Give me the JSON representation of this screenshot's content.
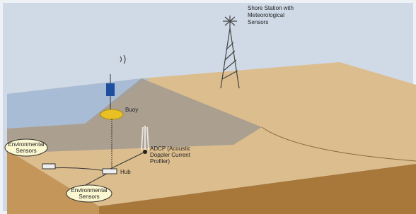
{
  "shore_station": {
    "label_lines": [
      "Shore Station with",
      "Meteorological",
      "Sensors"
    ]
  },
  "buoy": {
    "label": "Buoy"
  },
  "environmental_sensors": [
    {
      "label_lines": [
        "Environmental",
        "Sensors"
      ]
    },
    {
      "label_lines": [
        "Environmental",
        "Sensors"
      ]
    }
  ],
  "hub": {
    "label": "Hub"
  },
  "adcp": {
    "label_lines": [
      "ADCP (Acoustic",
      "Doppler Current",
      "Profiler)"
    ]
  }
}
